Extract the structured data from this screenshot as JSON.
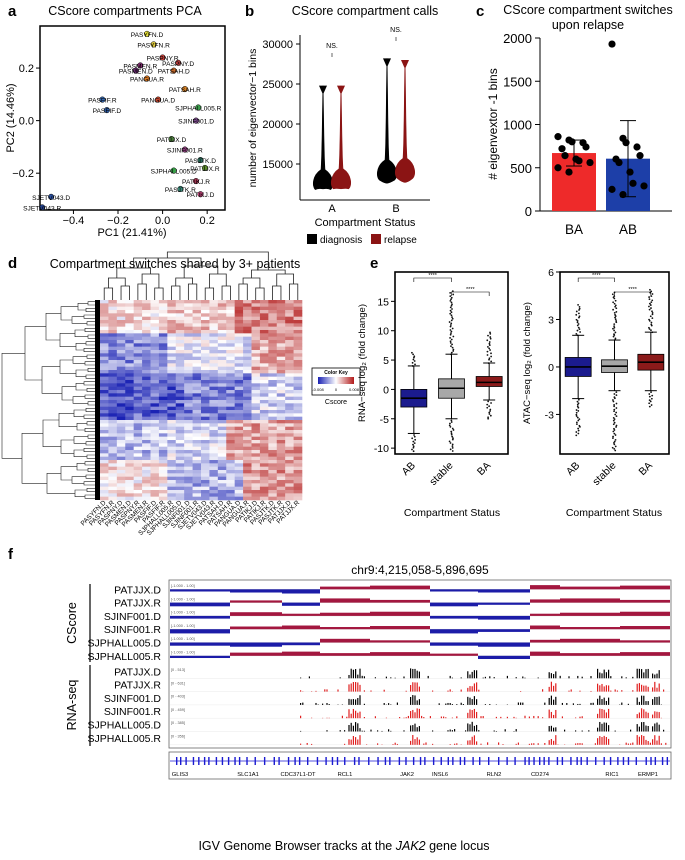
{
  "panels": {
    "a": {
      "letter": "a",
      "title": "CScore compartments PCA"
    },
    "b": {
      "letter": "b",
      "title": "CScore compartment calls"
    },
    "c": {
      "letter": "c",
      "title_line1": "CScore compartment switches",
      "title_line2": "upon relapse"
    },
    "d": {
      "letter": "d",
      "title": "Compartment switches shared by 3+ patients"
    },
    "e": {
      "letter": "e"
    },
    "f": {
      "letter": "f",
      "locus": "chr9:4,215,058-5,896,695",
      "caption_prefix": "IGV Genome Browser tracks at the ",
      "caption_gene": "JAK2",
      "caption_suffix": " gene locus"
    }
  },
  "chart_data": [
    {
      "id": "pca",
      "type": "scatter",
      "title": "CScore compartments PCA",
      "xlabel": "PC1 (21.41%)",
      "ylabel": "PC2 (14.46%)",
      "xlim": [
        -0.55,
        0.28
      ],
      "ylim": [
        -0.34,
        0.36
      ],
      "xticks": [
        -0.4,
        -0.2,
        0.0,
        0.2
      ],
      "yticks": [
        -0.2,
        0.0,
        0.2
      ],
      "xtick_labels": [
        "−0.4",
        "−0.2",
        "0.0",
        "0.2"
      ],
      "ytick_labels": [
        "−0.2",
        "0.0",
        "0.2"
      ],
      "points": [
        {
          "label": "PASYFN.D",
          "x": -0.07,
          "y": 0.33,
          "color": "#e8e23a"
        },
        {
          "label": "PASYFN.R",
          "x": -0.04,
          "y": 0.29,
          "color": "#d8c43c"
        },
        {
          "label": "PASPNY.R",
          "x": 0.0,
          "y": 0.24,
          "color": "#c9413b"
        },
        {
          "label": "PASPNY.D",
          "x": 0.07,
          "y": 0.22,
          "color": "#b83b3b"
        },
        {
          "label": "PASMEN.R",
          "x": -0.1,
          "y": 0.21,
          "color": "#7a2a6b"
        },
        {
          "label": "PASMEN.D",
          "x": -0.12,
          "y": 0.19,
          "color": "#6a2b72"
        },
        {
          "label": "PATSAH.D",
          "x": 0.05,
          "y": 0.19,
          "color": "#c86a2a"
        },
        {
          "label": "PANGUA.R",
          "x": -0.07,
          "y": 0.16,
          "color": "#e07a1f"
        },
        {
          "label": "PATSAH.R",
          "x": 0.1,
          "y": 0.12,
          "color": "#d9852a"
        },
        {
          "label": "PASFIF.R",
          "x": -0.27,
          "y": 0.08,
          "color": "#3568b0"
        },
        {
          "label": "PASFIF.D",
          "x": -0.25,
          "y": 0.04,
          "color": "#2c5aa0"
        },
        {
          "label": "PANGUA.D",
          "x": -0.02,
          "y": 0.08,
          "color": "#c8462e"
        },
        {
          "label": "SJPHALL005.R",
          "x": 0.16,
          "y": 0.05,
          "color": "#3a9b4a"
        },
        {
          "label": "SJINF001.D",
          "x": 0.15,
          "y": 0.0,
          "color": "#7a4a8a"
        },
        {
          "label": "PATJJX.D",
          "x": 0.04,
          "y": -0.07,
          "color": "#4a7a3a"
        },
        {
          "label": "SJINF001.R",
          "x": 0.1,
          "y": -0.11,
          "color": "#8a3b7a"
        },
        {
          "label": "PASJTK.D",
          "x": 0.17,
          "y": -0.15,
          "color": "#2a6a5a"
        },
        {
          "label": "SJPHALL005.D",
          "x": 0.05,
          "y": -0.19,
          "color": "#38a048"
        },
        {
          "label": "PATJJX.R",
          "x": 0.19,
          "y": -0.18,
          "color": "#5a8a2a"
        },
        {
          "label": "PATIKJ.R",
          "x": 0.15,
          "y": -0.23,
          "color": "#b03a5a"
        },
        {
          "label": "PASJTK.R",
          "x": 0.08,
          "y": -0.26,
          "color": "#3a8a7a"
        },
        {
          "label": "PATIKJ.D",
          "x": 0.17,
          "y": -0.28,
          "color": "#c2447a"
        },
        {
          "label": "SJETV043.D",
          "x": -0.5,
          "y": -0.29,
          "color": "#2a50a0"
        },
        {
          "label": "SJETV043.R",
          "x": -0.54,
          "y": -0.33,
          "color": "#223f88"
        }
      ]
    },
    {
      "id": "violin",
      "type": "violin",
      "title": "CScore compartment calls",
      "ylabel": "number of eigenvector−1 bins",
      "xlabel": "Compartment Status",
      "ylim": [
        10500,
        31500
      ],
      "yticks": [
        15000,
        20000,
        25000,
        30000
      ],
      "ytick_labels": [
        "15000",
        "20000",
        "25000",
        "30000"
      ],
      "categories": [
        "A",
        "B"
      ],
      "significance": [
        "NS.",
        "NS."
      ],
      "legend": [
        {
          "name": "diagnosis",
          "color": "#000000"
        },
        {
          "name": "relapse",
          "color": "#8b1414"
        }
      ],
      "series": [
        {
          "name": "diagnosis",
          "color": "#000000",
          "max": [
            24800,
            28200
          ],
          "center": [
            12800,
            14000
          ],
          "min": [
            11900,
            12600
          ]
        },
        {
          "name": "relapse",
          "color": "#8b1414",
          "max": [
            24800,
            28000
          ],
          "center": [
            12900,
            14200
          ],
          "min": [
            11900,
            12700
          ]
        }
      ]
    },
    {
      "id": "switch_bar",
      "type": "bar",
      "title": "CScore compartment switches upon relapse",
      "ylabel": "# eigenvextor -1 bins",
      "xlabel": "",
      "ylim": [
        0,
        2000
      ],
      "yticks": [
        0,
        500,
        1000,
        1500,
        2000
      ],
      "ytick_labels": [
        "0",
        "500",
        "1000",
        "1500",
        "2000"
      ],
      "categories": [
        "BA",
        "AB"
      ],
      "values": [
        670,
        605
      ],
      "errors": [
        [
          520,
          820
        ],
        [
          165,
          1045
        ]
      ],
      "colors": [
        "#ee2a2a",
        "#1d3fa8"
      ],
      "points": [
        [
          860,
          820,
          800,
          790,
          740,
          720,
          640,
          600,
          580,
          560,
          500,
          450
        ],
        [
          1930,
          840,
          790,
          740,
          640,
          600,
          560,
          450,
          320,
          290,
          250,
          190
        ]
      ]
    },
    {
      "id": "heatmap",
      "type": "heatmap",
      "title": "Compartment switches shared by 3+ patients",
      "color_key": {
        "title": "Color Key",
        "min_label": "-0.008",
        "mid_label": "0",
        "max_label": "0.008",
        "label": "Cscore"
      },
      "columns": [
        "PASYFN.D",
        "PASYFN.R",
        "PASPNY.D",
        "PASMEN.D",
        "PASPNY.R",
        "PASMEN.R",
        "PASFIF.D",
        "PASFIF.R",
        "SJPHALL005.R",
        "SJPHALL005.D",
        "SJINF001.D",
        "SJINF001.R",
        "SJETV043.D",
        "SJETV043.R",
        "PATSAH.D",
        "PATSAH.R",
        "PANGUA.D",
        "PANGUA.R",
        "PATIKJ.D",
        "PATIKJ.R",
        "PASJTK.D",
        "PASJTK.R",
        "PATJJX.D",
        "PATJJX.R"
      ]
    },
    {
      "id": "rna_box",
      "type": "box",
      "ylabel": "RNA−seq log₂ (fold change)",
      "xlabel": "Compartment Status",
      "ylim": [
        -11,
        20
      ],
      "yticks": [
        -10,
        -5,
        0,
        5,
        10,
        15
      ],
      "ytick_labels": [
        "-10",
        "-5",
        "0",
        "5",
        "10",
        "15"
      ],
      "categories": [
        "AB",
        "stable",
        "BA"
      ],
      "colors": [
        "#1b1b8e",
        "#a8a8a8",
        "#8b1a1a"
      ],
      "stats": [
        {
          "q1": -3,
          "median": -1.5,
          "q3": 0,
          "lo": -7.5,
          "hi": 4
        },
        {
          "q1": -1.5,
          "median": 0.2,
          "q3": 1.8,
          "lo": -5,
          "hi": 6
        },
        {
          "q1": 0.5,
          "median": 1.2,
          "q3": 2.2,
          "lo": -1.8,
          "hi": 4.5
        }
      ],
      "outlier_range": [
        [
          -10.5,
          6.5
        ],
        [
          -10.5,
          17
        ],
        [
          -5,
          10
        ]
      ],
      "significance": [
        "****",
        "****"
      ]
    },
    {
      "id": "atac_box",
      "type": "box",
      "ylabel": "ATAC−seq log₂ (fold change)",
      "xlabel": "Compartment Status",
      "ylim": [
        -5.5,
        6
      ],
      "yticks": [
        -3,
        0,
        3,
        6
      ],
      "ytick_labels": [
        "-3",
        "0",
        "3",
        "6"
      ],
      "categories": [
        "AB",
        "stable",
        "BA"
      ],
      "colors": [
        "#1b1b8e",
        "#a8a8a8",
        "#8b1a1a"
      ],
      "stats": [
        {
          "q1": -0.6,
          "median": 0,
          "q3": 0.6,
          "lo": -2,
          "hi": 2
        },
        {
          "q1": -0.35,
          "median": 0.05,
          "q3": 0.45,
          "lo": -1.5,
          "hi": 1.7
        },
        {
          "q1": -0.2,
          "median": 0.3,
          "q3": 0.8,
          "lo": -1.5,
          "hi": 2.2
        }
      ],
      "outlier_range": [
        [
          -4.3,
          4
        ],
        [
          -5.3,
          4.8
        ],
        [
          -2.5,
          5
        ]
      ],
      "significance": [
        "****",
        "****"
      ]
    },
    {
      "id": "igv",
      "type": "genome_tracks",
      "locus": "chr9:4,215,058-5,896,695",
      "group_labels": [
        "CScore",
        "RNA-seq"
      ],
      "cscore_tracks": [
        "PATJJX.D",
        "PATJJX.R",
        "SJINF001.D",
        "SJINF001.R",
        "SJPHALL005.D",
        "SJPHALL005.R"
      ],
      "cscore_range": "[-1.000 - 1.00]",
      "cscore_pattern": [
        [
          -1,
          -1,
          -1,
          1,
          1,
          -1,
          -1,
          1,
          1,
          1
        ],
        [
          -1,
          1,
          -1,
          1,
          1,
          -1,
          -1,
          1,
          1,
          1
        ],
        [
          -1,
          1,
          1,
          1,
          1,
          -1,
          -1,
          1,
          1,
          1
        ],
        [
          -1,
          1,
          1,
          1,
          1,
          -1,
          -1,
          1,
          1,
          1
        ],
        [
          -1,
          -1,
          -1,
          1,
          1,
          -1,
          -1,
          1,
          1,
          1
        ],
        [
          -1,
          1,
          1,
          1,
          1,
          1,
          -1,
          1,
          1,
          1
        ]
      ],
      "rna_tracks": [
        "PATJJX.D",
        "PATJJX.R",
        "SJINF001.D",
        "SJINF001.R",
        "SJPHALL005.D",
        "SJPHALL005.R"
      ],
      "rna_ranges": [
        "[0 - 513]",
        "[0 - 631]",
        "[0 - 403]",
        "[0 - 459]",
        "[0 - 385]",
        "[0 - 356]"
      ],
      "rna_colors": [
        "#000000",
        "#e02020",
        "#000000",
        "#e02020",
        "#000000",
        "#e02020"
      ],
      "genes": [
        "GLIS3",
        "SLC1A1",
        "CDC37L1-DT",
        "RCL1",
        "JAK2",
        "INSL6",
        "RLN2",
        "CD274",
        "RIC1",
        "ERMP1"
      ]
    }
  ]
}
